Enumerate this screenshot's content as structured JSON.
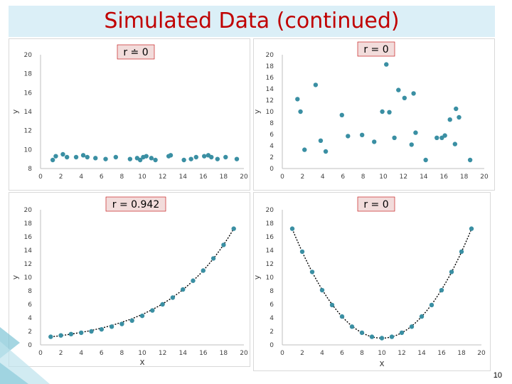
{
  "page": {
    "title": "Simulated Data (continued)",
    "page_number": "10"
  },
  "colors": {
    "title": "#c00000",
    "title_bg": "#dbeff7",
    "point": "#3a8fa3",
    "curve": "#000000",
    "label_box": "#f2dcdb",
    "label_border": "#c00000",
    "axis": "#bfbfbf"
  },
  "chart_data": [
    {
      "type": "scatter",
      "title": "r ≐ 0",
      "xlabel": "",
      "ylabel": "y",
      "xlim": [
        0,
        20
      ],
      "ylim": [
        8,
        20
      ],
      "xticks": [
        "0",
        "2",
        "4",
        "6",
        "8",
        "10",
        "12",
        "14",
        "16",
        "18",
        "20"
      ],
      "yticks": [
        "8",
        "10",
        "12",
        "14",
        "16",
        "18",
        "20"
      ],
      "x": [
        1.2,
        1.5,
        2.2,
        2.6,
        3.5,
        4.2,
        4.6,
        5.4,
        6.4,
        7.4,
        8.8,
        9.5,
        9.8,
        10.1,
        10.4,
        10.9,
        11.3,
        12.6,
        12.8,
        14.1,
        14.8,
        15.3,
        16.1,
        16.5,
        16.8,
        17.4,
        18.2,
        19.3
      ],
      "y": [
        8.9,
        9.3,
        9.5,
        9.2,
        9.2,
        9.4,
        9.2,
        9.1,
        9.0,
        9.2,
        9.0,
        9.1,
        8.9,
        9.2,
        9.3,
        9.1,
        8.9,
        9.3,
        9.4,
        8.9,
        9.0,
        9.2,
        9.3,
        9.4,
        9.2,
        9.0,
        9.2,
        9.0
      ],
      "trend": null
    },
    {
      "type": "scatter",
      "title": "r = 0",
      "xlabel": "",
      "ylabel": "y",
      "xlim": [
        0,
        20
      ],
      "ylim": [
        0,
        20
      ],
      "xticks": [
        "0",
        "2",
        "4",
        "6",
        "8",
        "10",
        "12",
        "14",
        "16",
        "18",
        "20"
      ],
      "yticks": [
        "0",
        "2",
        "4",
        "6",
        "8",
        "10",
        "12",
        "14",
        "16",
        "18",
        "20"
      ],
      "x": [
        1.5,
        1.8,
        2.2,
        3.3,
        3.8,
        4.3,
        5.9,
        6.5,
        7.9,
        9.1,
        9.9,
        10.3,
        10.6,
        11.1,
        11.5,
        12.1,
        12.8,
        13.0,
        13.2,
        14.2,
        15.3,
        15.8,
        16.1,
        16.6,
        17.1,
        17.2,
        17.5,
        18.6
      ],
      "y": [
        12.2,
        10.0,
        3.3,
        14.7,
        4.9,
        3.0,
        9.4,
        5.7,
        5.9,
        4.7,
        10.0,
        18.3,
        9.9,
        5.4,
        13.8,
        12.4,
        4.2,
        13.2,
        6.3,
        1.5,
        5.4,
        5.4,
        5.8,
        8.6,
        4.3,
        10.5,
        9.0,
        1.5
      ],
      "trend": null
    },
    {
      "type": "scatter",
      "title": "r = 0.942",
      "xlabel": "x",
      "ylabel": "y",
      "xlim": [
        0,
        20
      ],
      "ylim": [
        0,
        20
      ],
      "xticks": [
        "0",
        "2",
        "4",
        "6",
        "8",
        "10",
        "12",
        "14",
        "16",
        "18",
        "20"
      ],
      "yticks": [
        "0",
        "2",
        "4",
        "6",
        "8",
        "10",
        "12",
        "14",
        "16",
        "18",
        "20"
      ],
      "x": [
        1,
        2,
        3,
        4,
        5,
        6,
        7,
        8,
        9,
        10,
        11,
        12,
        13,
        14,
        15,
        16,
        17,
        18,
        19
      ],
      "y": [
        1.2,
        1.4,
        1.6,
        1.8,
        2.0,
        2.3,
        2.7,
        3.1,
        3.6,
        4.3,
        5.1,
        6.0,
        7.0,
        8.2,
        9.5,
        11.0,
        12.8,
        14.8,
        17.2
      ],
      "trend": "exponential"
    },
    {
      "type": "scatter",
      "title": "r = 0",
      "xlabel": "x",
      "ylabel": "y",
      "xlim": [
        0,
        20
      ],
      "ylim": [
        0,
        20
      ],
      "xticks": [
        "0",
        "2",
        "4",
        "6",
        "8",
        "10",
        "12",
        "14",
        "16",
        "18",
        "20"
      ],
      "yticks": [
        "0",
        "2",
        "4",
        "6",
        "8",
        "10",
        "12",
        "14",
        "16",
        "18",
        "20"
      ],
      "x": [
        1,
        2,
        3,
        4,
        5,
        6,
        7,
        8,
        9,
        10,
        11,
        12,
        13,
        14,
        15,
        16,
        17,
        18,
        19
      ],
      "y": [
        17.2,
        13.8,
        10.8,
        8.1,
        5.9,
        4.2,
        2.7,
        1.8,
        1.2,
        1.0,
        1.2,
        1.8,
        2.7,
        4.2,
        5.9,
        8.1,
        10.8,
        13.8,
        17.2
      ],
      "trend": "parabola"
    }
  ]
}
